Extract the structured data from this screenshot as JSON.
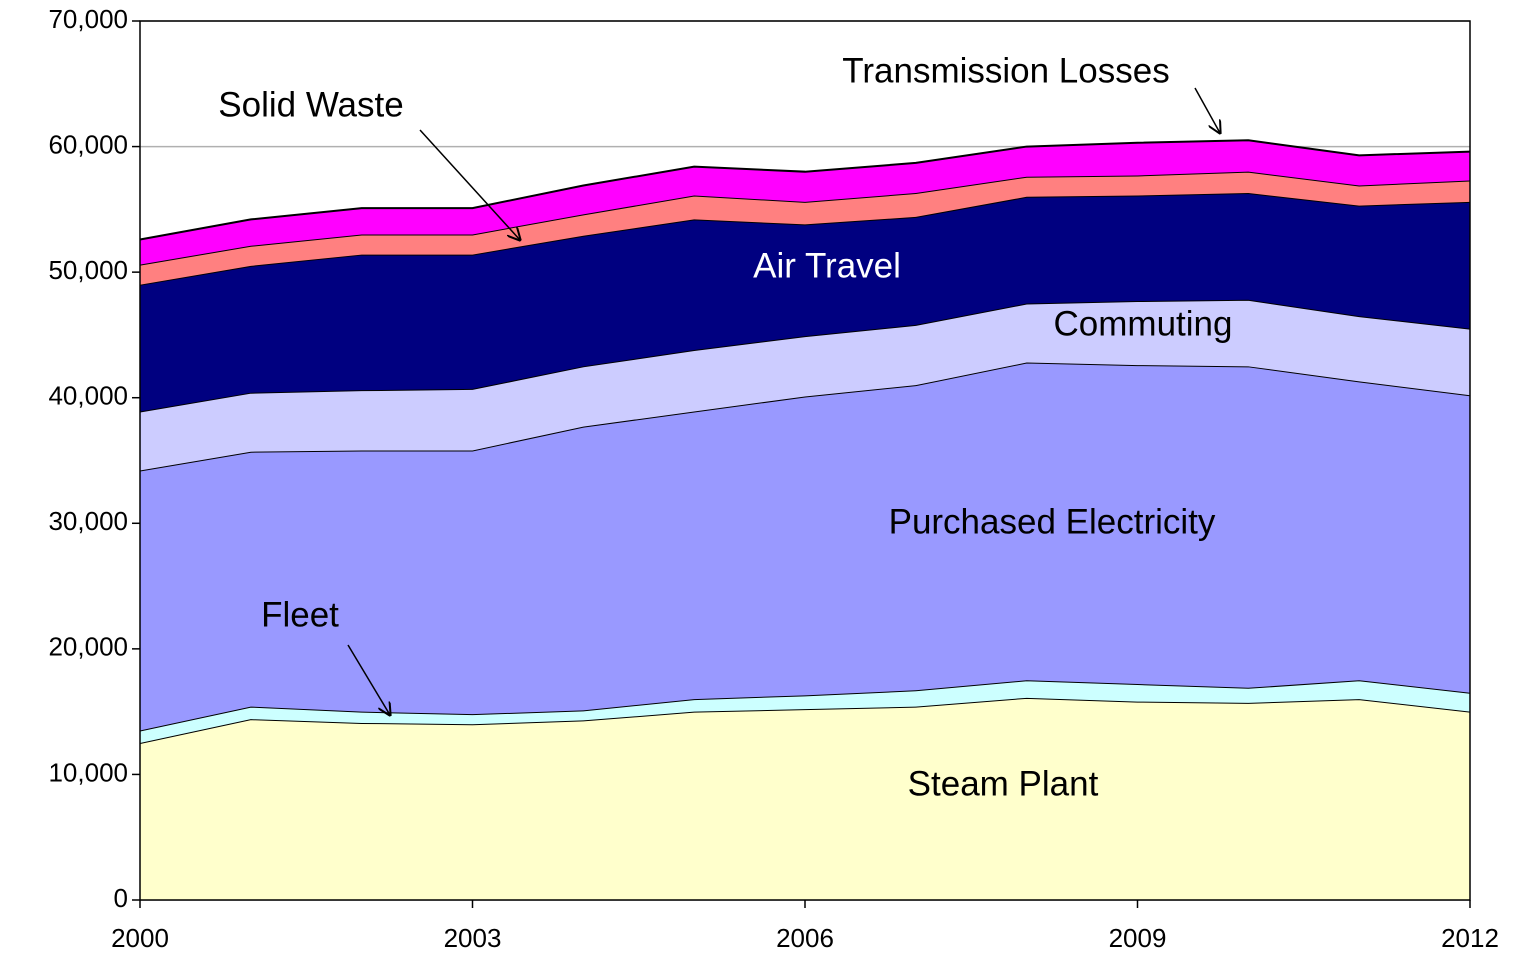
{
  "chart_data": {
    "type": "stacked_area",
    "x": [
      2000,
      2001,
      2002,
      2003,
      2004,
      2005,
      2006,
      2007,
      2008,
      2009,
      2010,
      2011,
      2012
    ],
    "series": [
      {
        "name": "Steam Plant",
        "color": "#ffffcc",
        "values": [
          12500,
          14400,
          14100,
          14000,
          14300,
          15000,
          15200,
          15400,
          16100,
          15800,
          15700,
          16000,
          15000
        ]
      },
      {
        "name": "Fleet",
        "color": "#ccffff",
        "values": [
          1000,
          1000,
          900,
          800,
          800,
          1000,
          1100,
          1300,
          1400,
          1400,
          1200,
          1500,
          1500
        ]
      },
      {
        "name": "Purchased Electricity",
        "color": "#9999ff",
        "values": [
          20700,
          20300,
          20800,
          21000,
          22600,
          22900,
          23800,
          24300,
          25300,
          25400,
          25600,
          23800,
          23700
        ]
      },
      {
        "name": "Commuting",
        "color": "#ccccff",
        "values": [
          4700,
          4700,
          4800,
          4900,
          4800,
          4900,
          4800,
          4800,
          4700,
          5100,
          5300,
          5200,
          5300
        ]
      },
      {
        "name": "Air Travel",
        "color": "#000080",
        "values": [
          10100,
          10100,
          10800,
          10700,
          10400,
          10400,
          8900,
          8600,
          8500,
          8400,
          8500,
          8800,
          10100
        ]
      },
      {
        "name": "Solid Waste",
        "color": "#ff8080",
        "values": [
          1600,
          1600,
          1600,
          1600,
          1700,
          1900,
          1800,
          1900,
          1600,
          1600,
          1700,
          1600,
          1700
        ]
      },
      {
        "name": "Transmission Losses",
        "color": "#ff00ff",
        "values": [
          2000,
          2100,
          2100,
          2100,
          2300,
          2300,
          2400,
          2400,
          2400,
          2600,
          2500,
          2400,
          2300
        ]
      }
    ],
    "xlim": [
      2000,
      2012
    ],
    "xticks": [
      2000,
      2003,
      2006,
      2009,
      2012
    ],
    "ylim": [
      0,
      70000
    ],
    "yticks": [
      0,
      {
        "value": 10000,
        "label": "10,000"
      },
      {
        "value": 20000,
        "label": "20,000"
      },
      {
        "value": 30000,
        "label": "30,000"
      },
      {
        "value": 40000,
        "label": "40,000"
      },
      {
        "value": 50000,
        "label": "50,000"
      },
      {
        "value": 60000,
        "label": "60,000"
      },
      {
        "value": 70000,
        "label": "70,000"
      }
    ],
    "grid": true
  }
}
